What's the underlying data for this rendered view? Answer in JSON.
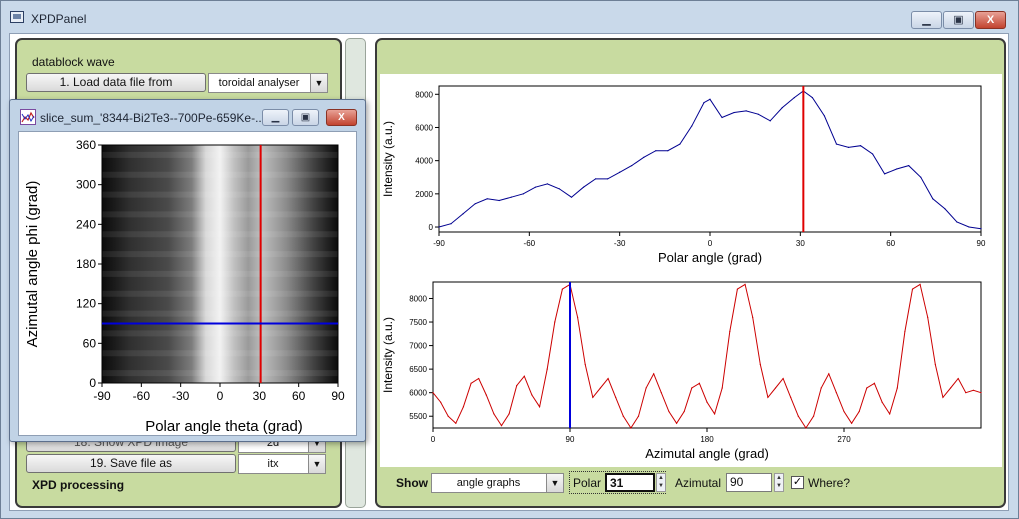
{
  "window": {
    "title": "XPDPanel",
    "min_label": "▁",
    "max_label": "▣",
    "close_label": "X"
  },
  "left_panel": {
    "header": "datablock wave",
    "load_button": "1. Load data file from",
    "load_source": "toroidal analyser",
    "hidden_button_18": "18. Show XPD image",
    "hidden_value_18": "2d",
    "save_button": "19. Save file as",
    "save_format": "itx",
    "section_label": "XPD processing"
  },
  "slice_window": {
    "title": "slice_sum_'8344-Bi2Te3--700Pe-659Ke-...",
    "xlabel": "Polar angle theta (grad)",
    "ylabel": "Azimutal angle phi (grad)",
    "xticks": [
      "-90",
      "-60",
      "-30",
      "0",
      "30",
      "60",
      "90"
    ],
    "yticks": [
      "0",
      "60",
      "120",
      "180",
      "240",
      "300",
      "360"
    ],
    "xlim": [
      -90,
      90
    ],
    "ylim": [
      0,
      360
    ],
    "red_cursor_polar": 31,
    "blue_cursor_azimutal": 90,
    "colors": {
      "red": "#e00000",
      "blue": "#0000dd"
    }
  },
  "bottom_bar": {
    "show_label": "Show",
    "show_value": "angle graphs",
    "polar_label": "Polar",
    "polar_value": "31",
    "azimutal_label": "Azimutal",
    "azimutal_value": "90",
    "where_label": "Where?",
    "where_checked": "✓"
  },
  "chart_data": [
    {
      "type": "line",
      "xlabel": "Polar angle (grad)",
      "ylabel": "Intensity (a.u.)",
      "xlim": [
        -90,
        90
      ],
      "ylim": [
        -300,
        8500
      ],
      "xticks": [
        "-90",
        "-60",
        "-30",
        "0",
        "30",
        "60",
        "90"
      ],
      "yticks": [
        "0",
        "2000",
        "4000",
        "6000",
        "8000"
      ],
      "series": [
        {
          "color": "#000090",
          "x": [
            -90,
            -86,
            -82,
            -78,
            -74,
            -70,
            -66,
            -62,
            -58,
            -54,
            -50,
            -46,
            -42,
            -38,
            -34,
            -30,
            -26,
            -22,
            -18,
            -14,
            -10,
            -6,
            -2,
            0,
            4,
            8,
            12,
            16,
            20,
            24,
            28,
            31,
            34,
            38,
            42,
            46,
            50,
            54,
            58,
            62,
            66,
            70,
            74,
            78,
            82,
            86,
            90
          ],
          "y": [
            0,
            200,
            800,
            1400,
            1700,
            1600,
            1800,
            2000,
            2400,
            2600,
            2300,
            1800,
            2400,
            2900,
            2900,
            3300,
            3700,
            4200,
            4600,
            4600,
            5000,
            6100,
            7500,
            7700,
            6600,
            6900,
            7000,
            6800,
            6400,
            7200,
            7800,
            8200,
            7800,
            6700,
            5000,
            4800,
            4900,
            4400,
            3200,
            3500,
            3700,
            3000,
            1700,
            1100,
            300,
            0,
            -100
          ]
        }
      ],
      "cursor_x": 31,
      "cursor_color": "#e00000"
    },
    {
      "type": "line",
      "xlabel": "Azimutal angle (grad)",
      "ylabel": "Intensity (a.u.)",
      "xlim": [
        0,
        360
      ],
      "ylim": [
        5250,
        8350
      ],
      "xticks": [
        "0",
        "90",
        "180",
        "270"
      ],
      "yticks": [
        "5500",
        "6000",
        "6500",
        "7000",
        "7500",
        "8000"
      ],
      "series": [
        {
          "color": "#cc0000",
          "x": [
            0,
            5,
            10,
            15,
            20,
            25,
            30,
            35,
            40,
            45,
            50,
            55,
            60,
            65,
            70,
            75,
            80,
            85,
            90,
            95,
            100,
            105,
            110,
            115,
            120,
            125,
            130,
            135,
            140,
            145,
            150,
            155,
            160,
            165,
            170,
            175,
            180,
            185,
            190,
            195,
            200,
            205,
            210,
            215,
            220,
            225,
            230,
            235,
            240,
            245,
            250,
            255,
            260,
            265,
            270,
            275,
            280,
            285,
            290,
            295,
            300,
            305,
            310,
            315,
            320,
            325,
            330,
            335,
            340,
            345,
            350,
            355,
            360
          ],
          "y": [
            6000,
            5800,
            5500,
            5350,
            5700,
            6200,
            6300,
            5950,
            5550,
            5300,
            5550,
            6150,
            6350,
            5950,
            5700,
            6500,
            7500,
            8200,
            8300,
            7600,
            6600,
            5900,
            6100,
            6300,
            5900,
            5500,
            5250,
            5500,
            6100,
            6400,
            6000,
            5600,
            5350,
            5600,
            6100,
            6200,
            5800,
            5550,
            6100,
            7300,
            8200,
            8300,
            7600,
            6600,
            5900,
            6100,
            6300,
            5900,
            5500,
            5250,
            5500,
            6100,
            6400,
            6000,
            5600,
            5350,
            5600,
            6100,
            6200,
            5800,
            5550,
            6100,
            7300,
            8200,
            8300,
            7600,
            6600,
            5900,
            6100,
            6300,
            6000,
            6050,
            6000
          ]
        }
      ],
      "cursor_x": 90,
      "cursor_color": "#0000dd"
    }
  ]
}
